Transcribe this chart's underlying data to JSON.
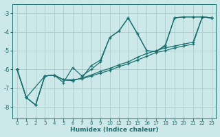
{
  "xlabel": "Humidex (Indice chaleur)",
  "bg_color": "#cce8e8",
  "grid_color": "#b0d0d0",
  "line_color": "#1a7070",
  "tick_labels": [
    "0",
    "1",
    "2",
    "3",
    "4",
    "5",
    "6",
    "7",
    "8",
    "9",
    "10",
    "12",
    "13",
    "15",
    "16",
    "17",
    "18",
    "19",
    "20",
    "21",
    "22",
    "23"
  ],
  "ylim": [
    -8.6,
    -2.5
  ],
  "yticks": [
    -8,
    -7,
    -6,
    -5,
    -4,
    -3
  ],
  "series": [
    {
      "xi": [
        0,
        1,
        2,
        3,
        4,
        5,
        6,
        7,
        8,
        9,
        10,
        11,
        12,
        13,
        14,
        15,
        16,
        17,
        18,
        19,
        20,
        21
      ],
      "y": [
        -6.0,
        -7.5,
        -7.9,
        -6.35,
        -6.3,
        -6.55,
        -6.6,
        -6.45,
        -6.3,
        -6.1,
        -5.95,
        -5.75,
        -5.6,
        -5.35,
        -5.15,
        -5.0,
        -4.85,
        -4.75,
        -4.65,
        -4.55,
        -3.2,
        -3.25
      ]
    },
    {
      "xi": [
        0,
        1,
        2,
        3,
        4,
        5,
        6,
        7,
        8,
        9,
        10,
        11,
        12,
        13,
        14,
        15,
        16,
        17,
        18,
        19,
        20,
        21
      ],
      "y": [
        -6.0,
        -7.5,
        -7.9,
        -6.35,
        -6.3,
        -6.55,
        -6.6,
        -6.45,
        -5.8,
        -5.5,
        -4.3,
        -3.95,
        -3.25,
        -4.1,
        -5.0,
        -5.05,
        -4.75,
        -3.25,
        -3.2,
        -3.2,
        -3.2,
        -3.25
      ]
    },
    {
      "xi": [
        0,
        1,
        3,
        4,
        5,
        6,
        7,
        8,
        9,
        10,
        11,
        12,
        13,
        14,
        15,
        16,
        17,
        18,
        19,
        20,
        21
      ],
      "y": [
        -6.0,
        -7.5,
        -6.35,
        -6.3,
        -6.7,
        -5.9,
        -6.35,
        -6.0,
        -5.6,
        -4.3,
        -3.95,
        -3.25,
        -4.1,
        -5.0,
        -5.05,
        -4.7,
        -3.25,
        -3.2,
        -3.2,
        -3.2,
        -3.25
      ]
    },
    {
      "xi": [
        0,
        1,
        2,
        3,
        4,
        5,
        6,
        7,
        8,
        9,
        10,
        11,
        12,
        13,
        14,
        15,
        16,
        17,
        18,
        19,
        20,
        21
      ],
      "y": [
        -6.0,
        -7.5,
        -7.9,
        -6.35,
        -6.3,
        -6.55,
        -6.55,
        -6.5,
        -6.35,
        -6.2,
        -6.05,
        -5.85,
        -5.7,
        -5.5,
        -5.3,
        -5.1,
        -5.0,
        -4.85,
        -4.75,
        -4.65,
        -3.2,
        -3.25
      ]
    }
  ]
}
